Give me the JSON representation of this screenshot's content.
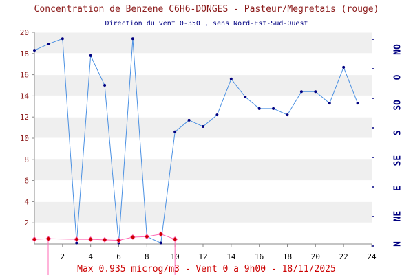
{
  "header": {
    "title": "Concentration de Benzene C6H6-DONGES - Pasteur/Megretais (rouge)",
    "subtitle": "Direction du vent 0-350 , sens Nord-Est-Sud-Ouest"
  },
  "footer": {
    "text": "Max 0.935 microg/m3 - Vent 0  a 9h00 - 18/11/2025"
  },
  "chart_data": {
    "type": "line",
    "title": "Concentration de Benzene C6H6-DONGES - Pasteur/Megretais (rouge)",
    "subtitle": "Direction du vent 0-350 , sens Nord-Est-Sud-Ouest",
    "xlabel": "",
    "ylabel": "",
    "xlim": [
      0,
      24
    ],
    "ylim": [
      0,
      20
    ],
    "x_ticks": [
      2,
      4,
      6,
      8,
      10,
      12,
      14,
      16,
      18,
      20,
      22,
      24
    ],
    "y_ticks": [
      2,
      4,
      6,
      8,
      10,
      12,
      14,
      16,
      18,
      20
    ],
    "right_axis_labels": [
      "NO",
      "O",
      "SO",
      "S",
      "SE",
      "E",
      "NE",
      "N"
    ],
    "grid": "alternating horizontal bands",
    "series": [
      {
        "color": "#4a90e2",
        "marker_color": "#000080",
        "x": [
          0,
          1,
          2,
          3,
          4,
          5,
          6,
          7,
          8,
          9,
          10,
          11,
          12,
          13,
          14,
          15,
          16,
          17,
          18,
          19,
          20,
          21,
          22,
          23
        ],
        "values": [
          18.3,
          18.9,
          19.4,
          0.1,
          17.8,
          15.0,
          0.1,
          19.4,
          0.7,
          0.1,
          10.6,
          11.7,
          11.1,
          12.2,
          15.6,
          13.9,
          12.8,
          12.8,
          12.2,
          14.4,
          14.4,
          13.3,
          16.7,
          13.3
        ]
      },
      {
        "color": "#ff69b4",
        "marker_color": "#cc0000",
        "x": [
          0,
          1,
          3,
          4,
          5,
          6,
          7,
          8,
          9,
          10
        ],
        "values": [
          0.45,
          0.5,
          0.45,
          0.45,
          0.4,
          0.35,
          0.65,
          0.7,
          0.935,
          0.45
        ]
      }
    ],
    "max_value": 0.935,
    "max_hour": "9h00",
    "date": "18/11/2025"
  },
  "colors": {
    "title": "#8b1a1a",
    "subtitle": "#000080",
    "footer": "#cc0000",
    "band": "#efefef",
    "y_tick_labels": "#8b1a1a",
    "right_labels": "#000080"
  }
}
